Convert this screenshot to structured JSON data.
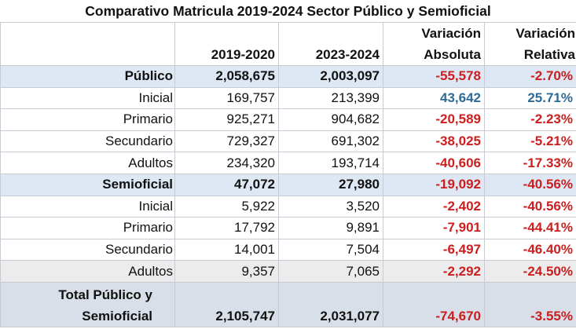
{
  "title": "Comparativo Matricula 2019-2024 Sector Público y Semioficial",
  "headers": {
    "col1": "2019-2020",
    "col2": "2023-2024",
    "col3_line1": "Variación",
    "col3_line2": "Absoluta",
    "col4_line1": "Variación",
    "col4_line2": "Relativa"
  },
  "rows": [
    {
      "label": "Público",
      "y2019": "2,058,675",
      "y2023": "2,003,097",
      "abs": "-55,578",
      "rel": "-2.70%"
    },
    {
      "label": "Inicial",
      "y2019": "169,757",
      "y2023": "213,399",
      "abs": "43,642",
      "rel": "25.71%"
    },
    {
      "label": "Primario",
      "y2019": "925,271",
      "y2023": "904,682",
      "abs": "-20,589",
      "rel": "-2.23%"
    },
    {
      "label": "Secundario",
      "y2019": "729,327",
      "y2023": "691,302",
      "abs": "-38,025",
      "rel": "-5.21%"
    },
    {
      "label": "Adultos",
      "y2019": "234,320",
      "y2023": "193,714",
      "abs": "-40,606",
      "rel": "-17.33%"
    },
    {
      "label": "Semioficial",
      "y2019": "47,072",
      "y2023": "27,980",
      "abs": "-19,092",
      "rel": "-40.56%"
    },
    {
      "label": "Inicial",
      "y2019": "5,922",
      "y2023": "3,520",
      "abs": "-2,402",
      "rel": "-40.56%"
    },
    {
      "label": "Primario",
      "y2019": "17,792",
      "y2023": "9,891",
      "abs": "-7,901",
      "rel": "-44.41%"
    },
    {
      "label": "Secundario",
      "y2019": "14,001",
      "y2023": "7,504",
      "abs": "-6,497",
      "rel": "-46.40%"
    },
    {
      "label": "Adultos",
      "y2019": "9,357",
      "y2023": "7,065",
      "abs": "-2,292",
      "rel": "-24.50%"
    }
  ],
  "total": {
    "label_line1": "Total Público y",
    "label_line2": "Semioficial",
    "y2019": "2,105,747",
    "y2023": "2,031,077",
    "abs": "-74,670",
    "rel": "-3.55%"
  },
  "colors": {
    "negative": "#cc1e1e",
    "positive": "#2d6b96",
    "group_row_bg": "#dde8f4",
    "total_row_bg": "#d9dfe8"
  }
}
